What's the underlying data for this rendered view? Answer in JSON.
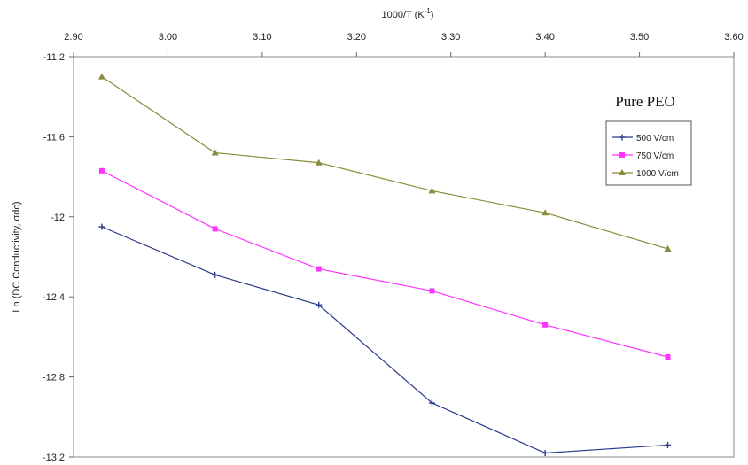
{
  "chart_data": {
    "type": "line",
    "title": "",
    "xlabel": "1000/T",
    "xlabel_unit": "(K",
    "xlabel_sup": "-1",
    "xlabel_close": ")",
    "ylabel": "Ln (DC Conductivity, σdc)",
    "xlim": [
      2.9,
      3.6
    ],
    "ylim": [
      -13.2,
      -11.2
    ],
    "x_ticks": [
      2.9,
      3.0,
      3.1,
      3.2,
      3.3,
      3.4,
      3.5,
      3.6
    ],
    "x_tick_labels": [
      "2.90",
      "3.00",
      "3.10",
      "3.20",
      "3.30",
      "3.40",
      "3.50",
      "3.60"
    ],
    "y_ticks": [
      -11.2,
      -11.6,
      -12.0,
      -12.4,
      -12.8,
      -13.2
    ],
    "y_tick_labels": [
      "-11.2",
      "-11.6",
      "-12",
      "-12.4",
      "-12.8",
      "-13.2"
    ],
    "x_axis_position": "top",
    "grid": false,
    "legend": {
      "title": "Pure PEO",
      "placement": "right"
    },
    "series": [
      {
        "name": "500 V/cm",
        "color": "#2a3a8c",
        "marker": "plus",
        "x": [
          2.93,
          3.05,
          3.16,
          3.28,
          3.4,
          3.53
        ],
        "y": [
          -12.05,
          -12.29,
          -12.44,
          -12.93,
          -13.18,
          -13.14
        ]
      },
      {
        "name": "750 V/cm",
        "color": "#ff33ff",
        "marker": "square",
        "x": [
          2.93,
          3.05,
          3.16,
          3.28,
          3.4,
          3.53
        ],
        "y": [
          -11.77,
          -12.06,
          -12.26,
          -12.37,
          -12.54,
          -12.7
        ]
      },
      {
        "name": "1000 V/cm",
        "color": "#8a8a3a",
        "marker": "triangle",
        "x": [
          2.93,
          3.05,
          3.16,
          3.28,
          3.4,
          3.53
        ],
        "y": [
          -11.3,
          -11.68,
          -11.73,
          -11.87,
          -11.98,
          -12.16
        ]
      }
    ]
  }
}
